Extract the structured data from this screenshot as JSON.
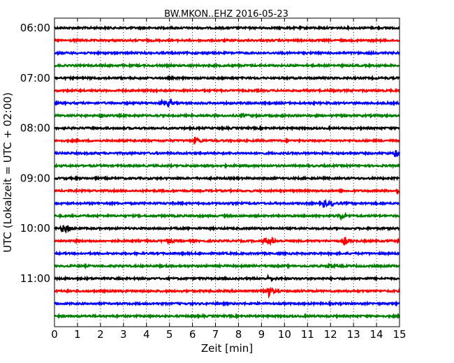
{
  "chart_data": {
    "type": "line",
    "title": "BW.MKON..EHZ 2016-05-23",
    "xlabel": "Zeit  [min]",
    "ylabel": "UTC (Lokalzeit = UTC + 02:00)",
    "xlim": [
      0,
      15
    ],
    "x_ticks": [
      "0",
      "1",
      "2",
      "3",
      "4",
      "5",
      "6",
      "7",
      "8",
      "9",
      "10",
      "11",
      "12",
      "13",
      "14",
      "15"
    ],
    "y_ticks": [
      "06:00",
      "07:00",
      "08:00",
      "09:00",
      "10:00",
      "11:00"
    ],
    "grid": "vertical dotted",
    "colors": [
      "#000000",
      "#ff0000",
      "#0000ff",
      "#008000"
    ],
    "traces": [
      {
        "start": "06:00",
        "events": []
      },
      {
        "start": "06:15",
        "events": []
      },
      {
        "start": "06:30",
        "events": []
      },
      {
        "start": "06:45",
        "events": []
      },
      {
        "start": "07:00",
        "events": []
      },
      {
        "start": "07:15",
        "events": []
      },
      {
        "start": "07:30",
        "events": [
          {
            "t": 4.6,
            "amp": 0.25
          },
          {
            "t": 4.95,
            "amp": 0.35
          }
        ]
      },
      {
        "start": "07:45",
        "events": [
          {
            "t": 2.0,
            "amp": 0.2
          },
          {
            "t": 8.2,
            "amp": 0.15
          }
        ]
      },
      {
        "start": "08:00",
        "events": []
      },
      {
        "start": "08:15",
        "events": [
          {
            "t": 6.1,
            "amp": 0.4
          }
        ]
      },
      {
        "start": "08:30",
        "events": [
          {
            "t": 14.8,
            "amp": 0.35
          }
        ]
      },
      {
        "start": "08:45",
        "events": []
      },
      {
        "start": "09:00",
        "events": []
      },
      {
        "start": "09:15",
        "events": [
          {
            "t": 14.9,
            "amp": 0.3
          }
        ]
      },
      {
        "start": "09:30",
        "events": [
          {
            "t": 11.7,
            "amp": 0.4
          },
          {
            "t": 12.0,
            "amp": 0.2
          }
        ]
      },
      {
        "start": "09:45",
        "events": [
          {
            "t": 12.4,
            "amp": 0.45
          }
        ]
      },
      {
        "start": "10:00",
        "events": [
          {
            "t": 0.3,
            "amp": 0.45
          },
          {
            "t": 0.5,
            "amp": 0.3
          }
        ]
      },
      {
        "start": "10:15",
        "events": [
          {
            "t": 4.9,
            "amp": 0.25
          },
          {
            "t": 9.1,
            "amp": 0.3
          },
          {
            "t": 9.4,
            "amp": 0.35
          },
          {
            "t": 12.6,
            "amp": 0.4
          }
        ]
      },
      {
        "start": "10:30",
        "events": []
      },
      {
        "start": "10:45",
        "events": [
          {
            "t": 11.9,
            "amp": 0.2
          }
        ]
      },
      {
        "start": "11:00",
        "events": [
          {
            "t": 9.3,
            "amp": 0.25
          }
        ]
      },
      {
        "start": "11:15",
        "events": [
          {
            "t": 9.1,
            "amp": 0.5
          },
          {
            "t": 9.3,
            "amp": 0.4
          }
        ]
      },
      {
        "start": "11:30",
        "events": []
      },
      {
        "start": "11:45",
        "events": []
      }
    ]
  }
}
